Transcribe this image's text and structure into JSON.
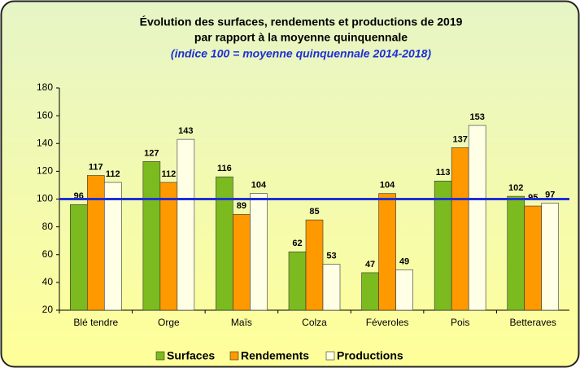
{
  "chart_data": {
    "type": "bar",
    "title": "Évolution des surfaces, rendements et productions de 2019",
    "title_line2": "par rapport à la moyenne quinquennale",
    "subtitle": "(indice 100 = moyenne quinquennale 2014-2018)",
    "categories": [
      "Blé tendre",
      "Orge",
      "Maïs",
      "Colza",
      "Féveroles",
      "Pois",
      "Betteraves"
    ],
    "series": [
      {
        "name": "Surfaces",
        "color": "#7cbb1f",
        "values": [
          96,
          127,
          116,
          62,
          47,
          113,
          102
        ]
      },
      {
        "name": "Rendements",
        "color": "#ff9900",
        "values": [
          117,
          112,
          89,
          85,
          104,
          137,
          95
        ]
      },
      {
        "name": "Productions",
        "color": "#ffffe6",
        "values": [
          112,
          143,
          104,
          53,
          49,
          153,
          97
        ]
      }
    ],
    "reference_line": 100,
    "reference_color": "#1f2fd6",
    "ylim": [
      20,
      180
    ],
    "yticks": [
      20,
      40,
      60,
      80,
      100,
      120,
      140,
      160,
      180
    ],
    "legend": "bottom"
  }
}
